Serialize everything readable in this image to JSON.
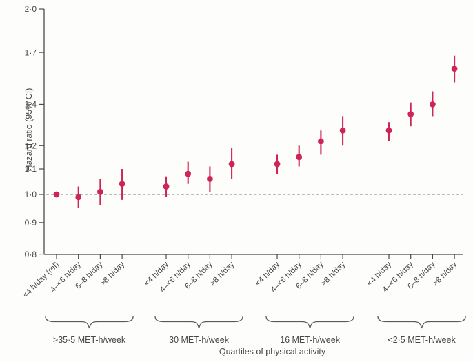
{
  "figure": {
    "background": "#fdfdfc"
  },
  "chart_data": {
    "type": "scatter",
    "subtype": "forest-plot-point-estimates-with-95ci",
    "title": "",
    "ylabel": "Hazard ratio (95% CI)",
    "xlabel": "Quartiles of physical activity",
    "yscale": "log",
    "ylim": [
      0.8,
      2.0
    ],
    "grid": "off",
    "legend": "none",
    "reference_line": 1.0,
    "yticks": [
      {
        "value": 2.0,
        "label": "2·0"
      },
      {
        "value": 1.7,
        "label": "1·7"
      },
      {
        "value": 1.4,
        "label": "1·4"
      },
      {
        "value": 1.2,
        "label": "1·2"
      },
      {
        "value": 1.1,
        "label": "1·1"
      },
      {
        "value": 1.0,
        "label": "1·0"
      },
      {
        "value": 0.9,
        "label": "0·9"
      },
      {
        "value": 0.8,
        "label": "0·8"
      }
    ],
    "groups": [
      {
        "label": ">35·5 MET-h/week",
        "points": [
          {
            "category": "<4 h/day (ref)",
            "hr": 1.0,
            "ci_low": 1.0,
            "ci_high": 1.0
          },
          {
            "category": "4–<6 h/day",
            "hr": 0.99,
            "ci_low": 0.95,
            "ci_high": 1.03
          },
          {
            "category": "6–8 h/day",
            "hr": 1.01,
            "ci_low": 0.96,
            "ci_high": 1.06
          },
          {
            "category": ">8 h/day",
            "hr": 1.04,
            "ci_low": 0.98,
            "ci_high": 1.1
          }
        ]
      },
      {
        "label": "30 MET-h/week",
        "points": [
          {
            "category": "<4 h/day",
            "hr": 1.03,
            "ci_low": 0.99,
            "ci_high": 1.07
          },
          {
            "category": "4–<6 h/day",
            "hr": 1.08,
            "ci_low": 1.04,
            "ci_high": 1.13
          },
          {
            "category": "6–8 h/day",
            "hr": 1.06,
            "ci_low": 1.01,
            "ci_high": 1.11
          },
          {
            "category": ">8 h/day",
            "hr": 1.12,
            "ci_low": 1.06,
            "ci_high": 1.19
          }
        ]
      },
      {
        "label": "16 MET-h/week",
        "points": [
          {
            "category": "<4 h/day",
            "hr": 1.12,
            "ci_low": 1.08,
            "ci_high": 1.16
          },
          {
            "category": "4–<6 h/day",
            "hr": 1.15,
            "ci_low": 1.11,
            "ci_high": 1.2
          },
          {
            "category": "6–8 h/day",
            "hr": 1.22,
            "ci_low": 1.16,
            "ci_high": 1.27
          },
          {
            "category": ">8 h/day",
            "hr": 1.27,
            "ci_low": 1.2,
            "ci_high": 1.34
          }
        ]
      },
      {
        "label": "<2·5 MET-h/week",
        "points": [
          {
            "category": "<4 h/day",
            "hr": 1.27,
            "ci_low": 1.22,
            "ci_high": 1.31
          },
          {
            "category": "4–<6 h/day",
            "hr": 1.35,
            "ci_low": 1.29,
            "ci_high": 1.41
          },
          {
            "category": "6–8 h/day",
            "hr": 1.4,
            "ci_low": 1.34,
            "ci_high": 1.47
          },
          {
            "category": ">8 h/day",
            "hr": 1.6,
            "ci_low": 1.52,
            "ci_high": 1.68
          }
        ]
      }
    ],
    "colors": {
      "marker": "#cf2456",
      "axis": "#4a4a4a",
      "text": "#474747",
      "reference_line": "#6f8282",
      "brace": "#5a5a5a"
    }
  }
}
